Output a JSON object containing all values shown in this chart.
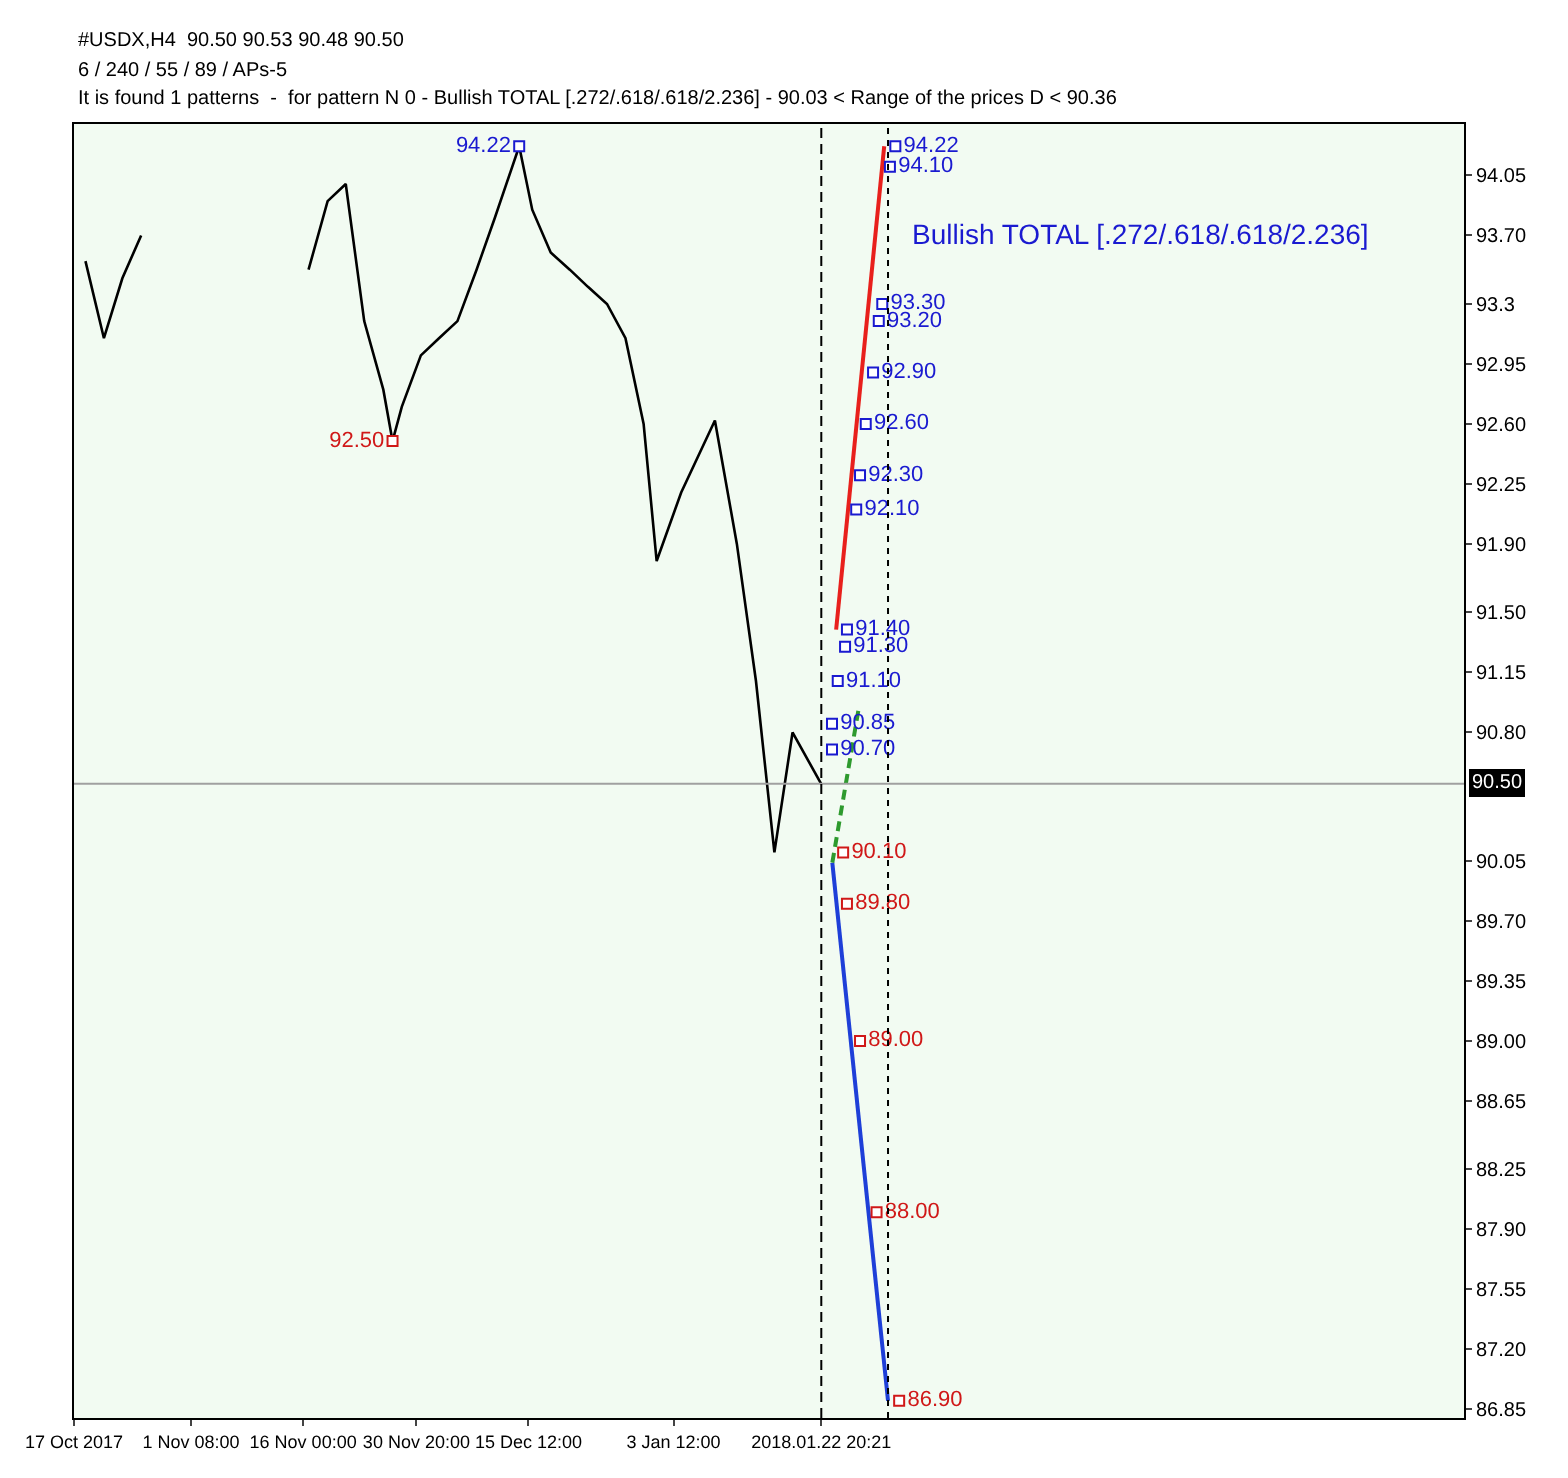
{
  "chart_data": {
    "type": "line",
    "x": [
      "2017-10-18T12:00",
      "2017-10-20T22:00",
      "2017-10-23T08:00",
      "2017-10-25T19:00",
      "2017-11-05T00:00",
      "2017-11-16T17:00",
      "2017-11-19T05:00",
      "2017-11-21T14:00",
      "2017-11-24T00:00",
      "2017-11-26T12:00",
      "2017-11-27T17:00",
      "2017-11-28T22:00",
      "2017-12-01T10:00",
      "2017-12-03T19:00",
      "2017-12-06T05:00",
      "2017-12-08T17:00",
      "2017-12-11T02:00",
      "2017-12-14T07:00",
      "2017-12-16T00:00",
      "2017-12-18T10:00",
      "2017-12-20T22:00",
      "2017-12-23T07:00",
      "2017-12-25T19:00",
      "2017-12-28T05:00",
      "2017-12-30T14:00",
      "2018-01-01T07:00",
      "2018-01-04T12:00",
      "2018-01-08T22:00",
      "2018-01-11T19:00",
      "2018-01-14T07:00",
      "2018-01-16T17:00",
      "2018-01-19T02:00",
      "2018-01-22T20:00"
    ],
    "series": [
      {
        "color": "#000000",
        "values": [
          93.55,
          93.1,
          93.45,
          93.7,
          null,
          93.5,
          93.9,
          94.0,
          93.2,
          92.8,
          92.5,
          92.7,
          93.0,
          93.1,
          93.2,
          93.5,
          93.8,
          94.22,
          93.85,
          93.6,
          93.5,
          93.4,
          93.3,
          93.1,
          92.6,
          91.8,
          92.2,
          92.62,
          91.9,
          91.1,
          90.1,
          90.8,
          90.5
        ]
      },
      {
        "color": "#e8201c",
        "x": [
          "2018-01-24T19:00",
          "2018-01-31T02:00"
        ],
        "values": [
          91.4,
          94.22
        ]
      },
      {
        "color": "#1e3fd8",
        "x": [
          "2018-01-24T07:00",
          "2018-01-31T14:00"
        ],
        "values": [
          90.04,
          86.9
        ]
      },
      {
        "color": "#2e9a2e",
        "line_style": "dashed",
        "x": [
          "2018-01-24T07:00",
          "2018-01-27T17:00"
        ],
        "values": [
          90.04,
          90.93
        ]
      },
      {
        "type": "scatter",
        "marker": "square",
        "color": "#d01818",
        "x": [
          "2017-11-27T17:00"
        ],
        "values": [
          92.5
        ],
        "value_labels": [
          "92.50"
        ]
      },
      {
        "type": "scatter",
        "marker": "square",
        "color": "#1a1ad0",
        "x": [
          "2017-12-14T07:00"
        ],
        "values": [
          94.22
        ],
        "value_labels": [
          "94.22"
        ]
      },
      {
        "type": "scatter",
        "marker": "square",
        "color": "#1a1ad0",
        "x": [
          "2018-02-01T13:00",
          "2018-01-31T20:00",
          "2018-01-30T20:00",
          "2018-01-30T09:00",
          "2018-01-29T15:00",
          "2018-01-28T16:00",
          "2018-01-27T22:00",
          "2018-01-27T10:00",
          "2018-01-26T05:00",
          "2018-01-25T23:00",
          "2018-01-25T00:00",
          "2018-01-24T06:00",
          "2018-01-24T06:00"
        ],
        "values": [
          94.22,
          94.1,
          93.3,
          93.2,
          92.9,
          92.6,
          92.3,
          92.1,
          91.4,
          91.3,
          91.1,
          90.85,
          90.7
        ],
        "value_labels": [
          "94.22",
          "94.10",
          "93.30",
          "93.20",
          "92.90",
          "92.60",
          "92.30",
          "92.10",
          "91.40",
          "91.30",
          "91.10",
          "90.85",
          "90.70"
        ]
      },
      {
        "type": "scatter",
        "marker": "square",
        "color": "#d01818",
        "x": [
          "2018-01-25T17:00",
          "2018-01-26T05:00",
          "2018-01-27T22:00",
          "2018-01-30T02:00",
          "2018-02-02T01:00"
        ],
        "values": [
          90.1,
          89.8,
          89.0,
          88.0,
          86.9
        ],
        "value_labels": [
          "90.10",
          "89.80",
          "89.00",
          "88.00",
          "86.90"
        ]
      }
    ],
    "xlim": [
      "2017-10-17",
      "2018-04-17"
    ],
    "xticks": [
      {
        "value": "2017-10-17",
        "label": "17 Oct 2017"
      },
      {
        "value": "2017-11-01T08:00",
        "label": "1 Nov 08:00"
      },
      {
        "value": "2017-11-16",
        "label": "16 Nov 00:00"
      },
      {
        "value": "2017-11-30T20:00",
        "label": "30 Nov 20:00"
      },
      {
        "value": "2017-12-15T12:00",
        "label": "15 Dec 12:00"
      },
      {
        "value": "2018-01-03T12:00",
        "label": "3 Jan 12:00"
      },
      {
        "value": "2018-01-22T20:21",
        "label": "2018.01.22 20:21"
      }
    ],
    "ylim": [
      86.8,
      94.35
    ],
    "yticks": [
      94.05,
      {
        "value": 93.7,
        "label": "93.70"
      },
      93.3,
      92.95,
      {
        "value": 92.6,
        "label": "92.60"
      },
      92.25,
      {
        "value": 91.9,
        "label": "91.90"
      },
      {
        "value": 91.5,
        "label": "91.50"
      },
      91.15,
      {
        "value": 90.8,
        "label": "90.80"
      },
      90.05,
      {
        "value": 89.7,
        "label": "89.70"
      },
      89.35,
      {
        "value": 89.0,
        "label": "89.00"
      },
      88.65,
      88.25,
      {
        "value": 87.9,
        "label": "87.90"
      },
      87.55,
      {
        "value": 87.2,
        "label": "87.20"
      },
      86.85
    ],
    "grid": false,
    "ref_lines": [
      {
        "axis": "y",
        "value": 90.5,
        "label": "90.50",
        "color": "#a0a0a0"
      },
      {
        "axis": "x",
        "value": "2018-01-22T20:21",
        "label": null,
        "color": "#000000",
        "line_style": "dashed"
      },
      {
        "axis": "x",
        "value": "2018-01-31T14:00",
        "label": null,
        "color": "#000000",
        "line_style": "dotted"
      }
    ],
    "annotations": [
      "#USDX,H4  90.50 90.53 90.48 90.50",
      "6 / 240 / 55 / 89 / APs-5",
      "It is found 1 patterns  -  for pattern N 0 - Bullish TOTAL [.272/.618/.618/2.236] - 90.03 < Range of the prices D < 90.36",
      "Bullish TOTAL [.272/.618/.618/2.236]"
    ]
  }
}
